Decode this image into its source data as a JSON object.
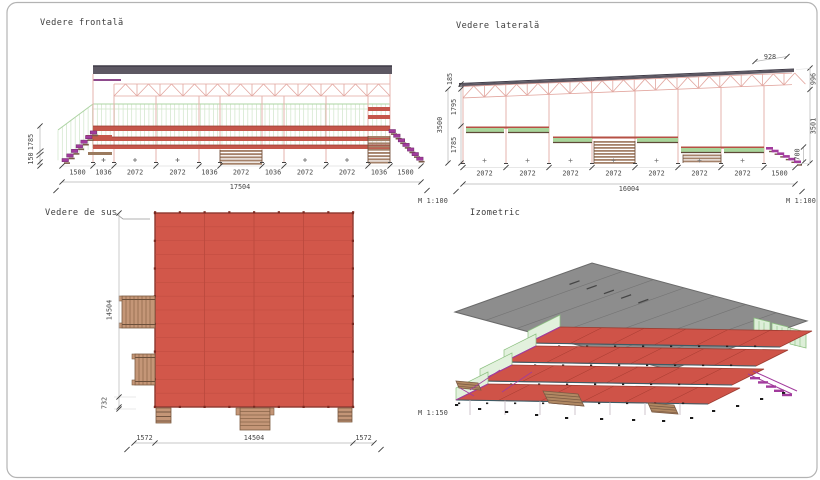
{
  "drawing": {
    "front": {
      "title": "Vedere frontală",
      "scale": "M 1:100",
      "chain": [
        "1500",
        "1036",
        "2072",
        "2072",
        "1036",
        "2072",
        "1036",
        "2072",
        "2072",
        "1036",
        "1500"
      ],
      "total": "17504",
      "left_height": "1785",
      "left_base": "150"
    },
    "side": {
      "title": "Vedere laterală",
      "scale": "M 1:100",
      "chain": [
        "2072",
        "2072",
        "2072",
        "2072",
        "2072",
        "2072",
        "2072",
        "1500"
      ],
      "total": "16004",
      "roof_offset": "928",
      "left_top": "185",
      "left_mid": "1795",
      "left_total": "3500",
      "left_bottom": "1785",
      "right_top": "996",
      "right_total": "3501",
      "right_bottom": "700"
    },
    "top": {
      "title": "Vedere de sus",
      "scale": "M 1:150",
      "side_width": "14504",
      "stair_depth": "732",
      "bottom": [
        "1572",
        "14504",
        "1572"
      ]
    },
    "iso": {
      "title": "Izometric"
    },
    "colors": {
      "deck_red": "#cf5348",
      "roof_band_dark": "#5d5863",
      "roof_gray": "#8d8d8d",
      "railing_green": "#a8d59a",
      "stair_brown": "#b08862",
      "step_magenta": "#a23b9d"
    }
  }
}
